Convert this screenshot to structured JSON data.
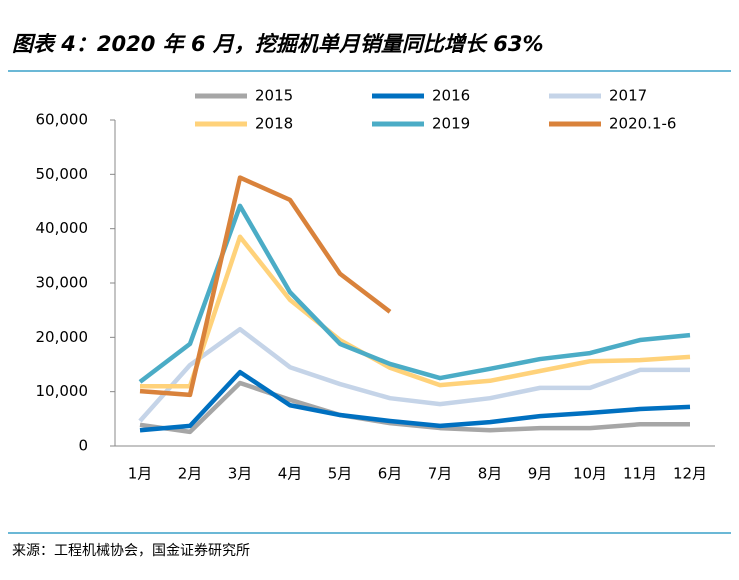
{
  "chart_data": {
    "type": "line",
    "title": "图表 4：2020 年 6 月，挖掘机单月销量同比增长 63%",
    "source": "来源：工程机械协会，国金证券研究所",
    "categories": [
      "1月",
      "2月",
      "3月",
      "4月",
      "5月",
      "6月",
      "7月",
      "8月",
      "9月",
      "10月",
      "11月",
      "12月"
    ],
    "ylim": [
      0,
      60000
    ],
    "yticks": [
      0,
      {
        "value": 10000,
        "label": "10,000"
      },
      {
        "value": 20000,
        "label": "20,000"
      },
      {
        "value": 30000,
        "label": "30,000"
      },
      {
        "value": 40000,
        "label": "40,000"
      },
      {
        "value": 50000,
        "label": "50,000"
      },
      {
        "value": 60000,
        "label": "60,000"
      }
    ],
    "grid": false,
    "legend": "top",
    "series": [
      {
        "name": "2015",
        "color": "#a6a6a6",
        "values": [
          3900,
          2600,
          11600,
          8500,
          5700,
          4200,
          3300,
          2900,
          3300,
          3300,
          4000,
          4000
        ]
      },
      {
        "name": "2016",
        "color": "#0070c0",
        "values": [
          2900,
          3700,
          13600,
          7500,
          5700,
          4600,
          3700,
          4400,
          5500,
          6100,
          6800,
          7200
        ]
      },
      {
        "name": "2017",
        "color": "#c5d4e8",
        "values": [
          4600,
          14900,
          21500,
          14500,
          11400,
          8800,
          7700,
          8800,
          10700,
          10700,
          14000,
          14000
        ]
      },
      {
        "name": "2018",
        "color": "#ffd27a",
        "values": [
          11000,
          11000,
          38500,
          26900,
          19500,
          14400,
          11200,
          12000,
          13800,
          15600,
          15800,
          16400
        ]
      },
      {
        "name": "2019",
        "color": "#4bacc6",
        "values": [
          11800,
          18800,
          44200,
          28300,
          18800,
          15100,
          12500,
          14200,
          16000,
          17100,
          19500,
          20400
        ]
      },
      {
        "name": "2020.1-6",
        "color": "#d9823b",
        "values": [
          10100,
          9400,
          49400,
          45300,
          31700,
          24700,
          null,
          null,
          null,
          null,
          null,
          null
        ]
      }
    ]
  }
}
